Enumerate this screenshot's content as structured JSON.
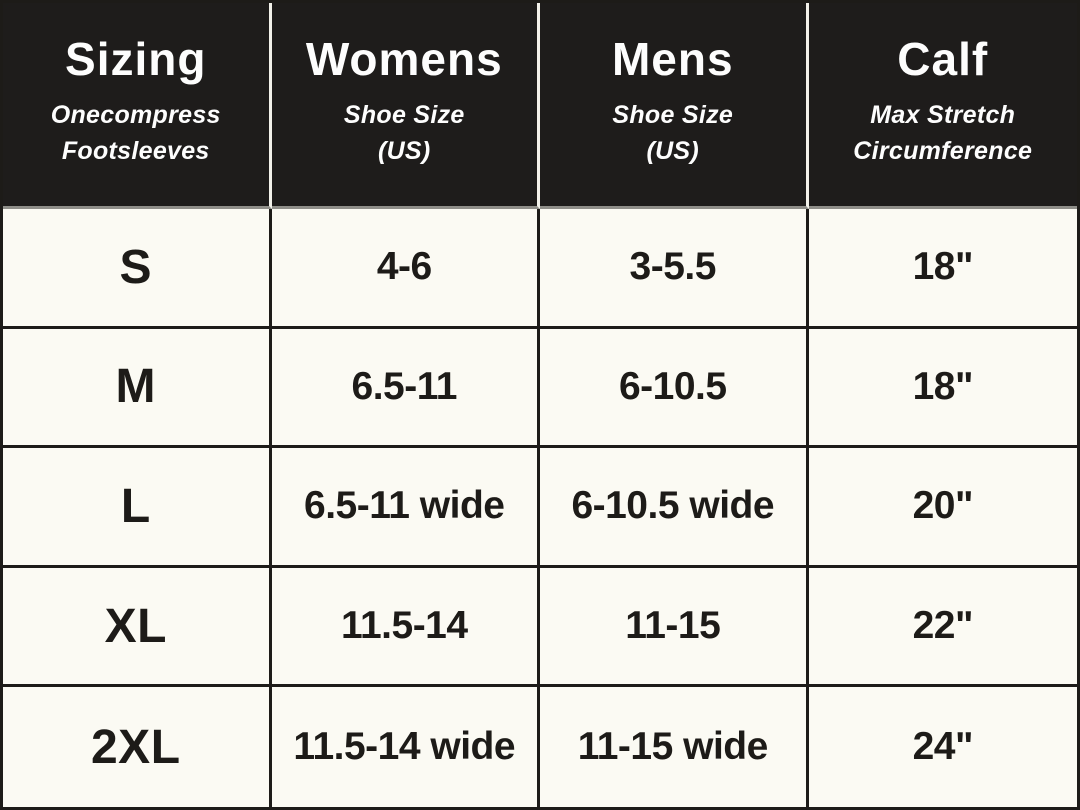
{
  "title": "Onecompress Footsleeves sizing table",
  "colors": {
    "header_bg": "#1e1c1b",
    "header_text": "#fdfdfd",
    "body_bg": "#fbfaf3",
    "body_text": "#1d1b18",
    "grid_line": "#1d1b18",
    "header_divider": "#f2f1ea",
    "header_bottom_line": "#8f8e89"
  },
  "chart_data": {
    "type": "table",
    "headers": [
      {
        "title": "Sizing",
        "subtitle": "Onecompress\nFootsleeves"
      },
      {
        "title": "Womens",
        "subtitle": "Shoe Size\n(US)"
      },
      {
        "title": "Mens",
        "subtitle": "Shoe Size\n(US)"
      },
      {
        "title": "Calf",
        "subtitle": "Max Stretch\nCircumference"
      }
    ],
    "rows": [
      [
        "S",
        "4-6",
        "3-5.5",
        "18\""
      ],
      [
        "M",
        "6.5-11",
        "6-10.5",
        "18\""
      ],
      [
        "L",
        "6.5-11 wide",
        "6-10.5 wide",
        "20\""
      ],
      [
        "XL",
        "11.5-14",
        "11-15",
        "22\""
      ],
      [
        "2XL",
        "11.5-14 wide",
        "11-15 wide",
        "24\""
      ]
    ]
  }
}
